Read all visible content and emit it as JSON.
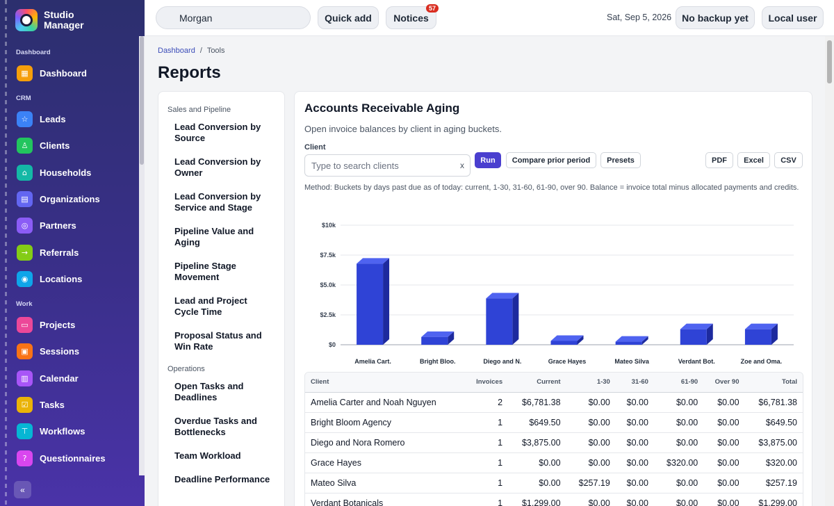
{
  "app": {
    "name": "Studio Manager"
  },
  "sidebar": {
    "sections": [
      "Dashboard",
      "CRM",
      "Work"
    ],
    "items": [
      {
        "label": "Dashboard",
        "icon": "grid-icon",
        "color": "#f59e0b",
        "section": "Dashboard"
      },
      {
        "label": "Leads",
        "icon": "star-icon",
        "color": "#3b82f6",
        "section": "CRM"
      },
      {
        "label": "Clients",
        "icon": "user-icon",
        "color": "#22c55e",
        "section": "CRM"
      },
      {
        "label": "Households",
        "icon": "home-icon",
        "color": "#14b8a6",
        "section": "CRM"
      },
      {
        "label": "Organizations",
        "icon": "building-icon",
        "color": "#6366f1",
        "section": "CRM"
      },
      {
        "label": "Partners",
        "icon": "handshake-icon",
        "color": "#8b5cf6",
        "section": "CRM"
      },
      {
        "label": "Referrals",
        "icon": "arrow-icon",
        "color": "#84cc16",
        "section": "CRM"
      },
      {
        "label": "Locations",
        "icon": "pin-icon",
        "color": "#0ea5e9",
        "section": "CRM"
      },
      {
        "label": "Projects",
        "icon": "folder-icon",
        "color": "#ec4899",
        "section": "Work"
      },
      {
        "label": "Sessions",
        "icon": "camera-icon",
        "color": "#f97316",
        "section": "Work"
      },
      {
        "label": "Calendar",
        "icon": "calendar-icon",
        "color": "#a855f7",
        "section": "Work"
      },
      {
        "label": "Tasks",
        "icon": "check-icon",
        "color": "#eab308",
        "section": "Work"
      },
      {
        "label": "Workflows",
        "icon": "flow-icon",
        "color": "#06b6d4",
        "section": "Work"
      },
      {
        "label": "Questionnaires",
        "icon": "question-icon",
        "color": "#d946ef",
        "section": "Work"
      }
    ],
    "collapse_label": "«"
  },
  "topbar": {
    "user": "Morgan",
    "quick_add": "Quick add",
    "notices": "Notices",
    "notices_count": "57",
    "date": "Sat, Sep 5, 2026",
    "backup": "No backup yet",
    "account": "Local user"
  },
  "breadcrumb": {
    "home": "Dashboard",
    "sep": "/",
    "current": "Tools"
  },
  "page_title": "Reports",
  "report_list": {
    "sections": [
      {
        "title": "Sales and Pipeline",
        "items": [
          "Lead Conversion by Source",
          "Lead Conversion by Owner",
          "Lead Conversion by Service and Stage",
          "Pipeline Value and Aging",
          "Pipeline Stage Movement",
          "Lead and Project Cycle Time",
          "Proposal Status and Win Rate"
        ]
      },
      {
        "title": "Operations",
        "items": [
          "Open Tasks and Deadlines",
          "Overdue Tasks and Bottlenecks",
          "Team Workload",
          "Deadline Performance"
        ]
      }
    ]
  },
  "report": {
    "title": "Accounts Receivable Aging",
    "subtitle": "Open invoice balances by client in aging buckets.",
    "client_label": "Client",
    "search_placeholder": "Type to search clients",
    "clear": "x",
    "buttons": {
      "run": "Run",
      "compare": "Compare prior period",
      "presets": "Presets",
      "pdf": "PDF",
      "excel": "Excel",
      "csv": "CSV"
    },
    "method": "Method: Buckets by days past due as of today: current, 1-30, 31-60, 61-90, over 90. Balance = invoice total minus allocated payments and credits."
  },
  "chart_data": {
    "type": "bar",
    "categories": [
      "Amelia Cart.",
      "Bright Bloo.",
      "Diego and N.",
      "Grace Hayes",
      "Mateo Silva",
      "Verdant Bot.",
      "Zoe and Oma."
    ],
    "values": [
      6781.38,
      649.5,
      3875.0,
      320.0,
      257.19,
      1299.0,
      1299.0
    ],
    "ylim": [
      0,
      10000
    ],
    "yticks": [
      0,
      2500,
      5000,
      7500,
      10000
    ],
    "ytick_labels": [
      "$0",
      "$2.5k",
      "$5.0k",
      "$7.5k",
      "$10k"
    ],
    "grid": true,
    "bar_color": "#2f43d6",
    "title": "",
    "xlabel": "",
    "ylabel": ""
  },
  "table": {
    "columns": [
      "Client",
      "Invoices",
      "Current",
      "1-30",
      "31-60",
      "61-90",
      "Over 90",
      "Total"
    ],
    "rows": [
      [
        "Amelia Carter and Noah Nguyen",
        "2",
        "$6,781.38",
        "$0.00",
        "$0.00",
        "$0.00",
        "$0.00",
        "$6,781.38"
      ],
      [
        "Bright Bloom Agency",
        "1",
        "$649.50",
        "$0.00",
        "$0.00",
        "$0.00",
        "$0.00",
        "$649.50"
      ],
      [
        "Diego and Nora Romero",
        "1",
        "$3,875.00",
        "$0.00",
        "$0.00",
        "$0.00",
        "$0.00",
        "$3,875.00"
      ],
      [
        "Grace Hayes",
        "1",
        "$0.00",
        "$0.00",
        "$0.00",
        "$320.00",
        "$0.00",
        "$320.00"
      ],
      [
        "Mateo Silva",
        "1",
        "$0.00",
        "$257.19",
        "$0.00",
        "$0.00",
        "$0.00",
        "$257.19"
      ],
      [
        "Verdant Botanicals",
        "1",
        "$1,299.00",
        "$0.00",
        "$0.00",
        "$0.00",
        "$0.00",
        "$1,299.00"
      ]
    ]
  },
  "colors": {
    "sidebar_top": "#2c2f6e",
    "sidebar_bottom": "#4a33a8",
    "accent": "#4a3fcf",
    "link": "#3b4cb8",
    "badge": "#d92d20"
  }
}
